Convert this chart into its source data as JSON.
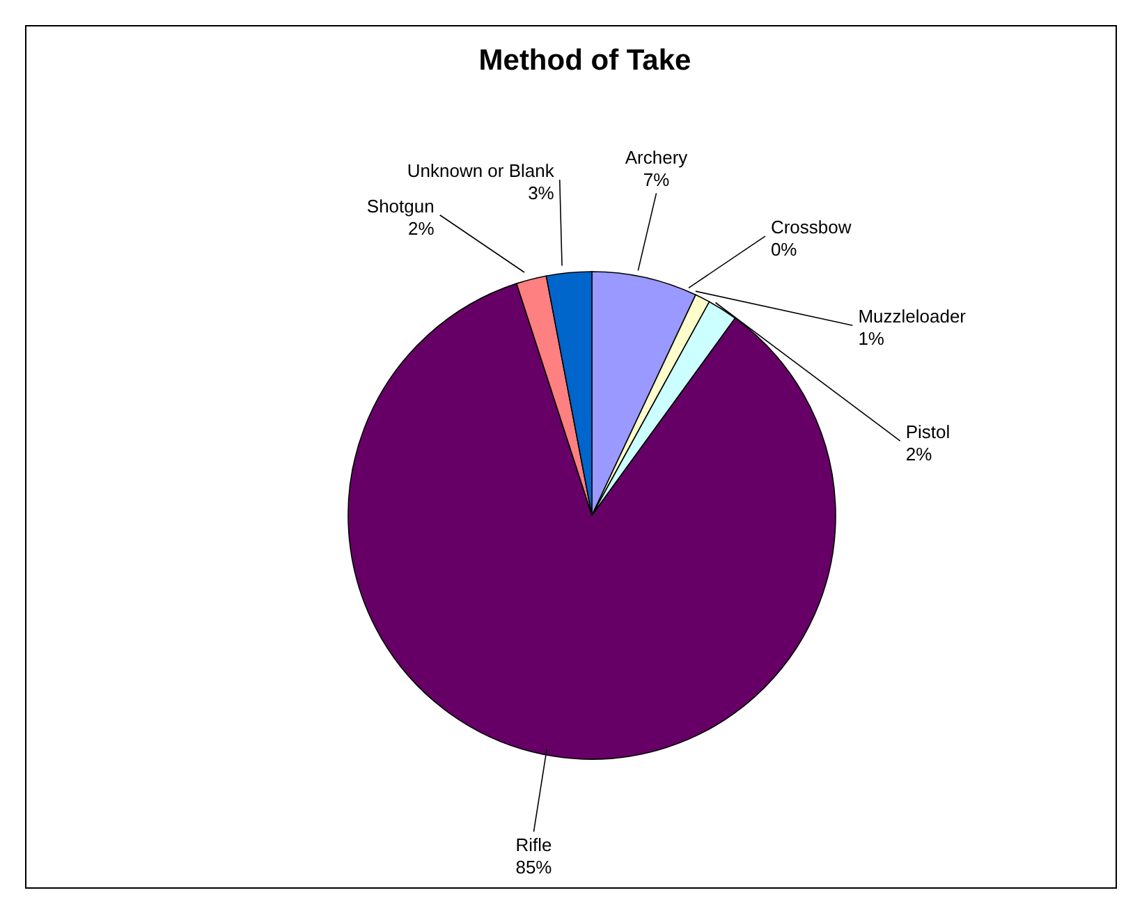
{
  "chart_data": {
    "type": "pie",
    "title": "Method of Take",
    "categories": [
      "Archery",
      "Crossbow",
      "Muzzleloader",
      "Pistol",
      "Rifle",
      "Shotgun",
      "Unknown or Blank"
    ],
    "values": [
      7,
      0,
      1,
      2,
      85,
      2,
      3
    ],
    "value_labels": [
      "7%",
      "0%",
      "1%",
      "2%",
      "85%",
      "2%",
      "3%"
    ],
    "colors": [
      "#9999ff",
      "#993366",
      "#ffffcc",
      "#ccffff",
      "#660066",
      "#ff8080",
      "#0066cc"
    ],
    "legend": false
  }
}
